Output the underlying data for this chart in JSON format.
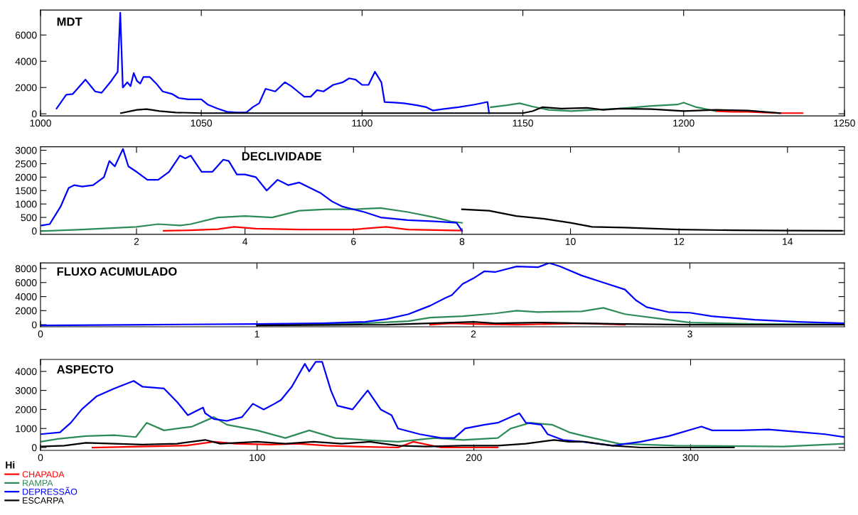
{
  "chart_data": [
    {
      "type": "line",
      "title": "MDT",
      "xlim": [
        1000,
        1250
      ],
      "xticks": [
        1000,
        1050,
        1100,
        1150,
        1200,
        1250
      ],
      "ylim": [
        -160,
        7900
      ],
      "yticks": [
        0,
        2000,
        4000,
        6000
      ],
      "grid": false,
      "legend": false,
      "series": [
        {
          "color": "#ff0000",
          "x": [
            1210,
            1215,
            1220,
            1225,
            1230,
            1237
          ],
          "values": [
            200,
            150,
            150,
            100,
            50,
            50
          ]
        },
        {
          "color": "#2e8b57",
          "x": [
            1140,
            1145,
            1149,
            1153,
            1158,
            1165,
            1172,
            1180,
            1190,
            1198,
            1200,
            1204,
            1210
          ],
          "values": [
            500,
            650,
            800,
            550,
            300,
            200,
            300,
            400,
            600,
            700,
            850,
            500,
            200
          ]
        },
        {
          "color": "#0000ff",
          "x": [
            1005,
            1008,
            1010,
            1014,
            1017,
            1019,
            1022,
            1024,
            1024.8,
            1025.6,
            1027,
            1028,
            1029,
            1030,
            1031,
            1032,
            1034,
            1036,
            1038,
            1041,
            1043,
            1046,
            1050,
            1052,
            1055,
            1058,
            1061,
            1064,
            1066,
            1068,
            1070,
            1073,
            1076,
            1078,
            1080,
            1082,
            1084,
            1086,
            1088,
            1091,
            1094,
            1096,
            1098,
            1100,
            1102,
            1104,
            1106,
            1107,
            1110,
            1113,
            1117,
            1120,
            1122,
            1125,
            1130,
            1135,
            1139,
            1139.5
          ],
          "values": [
            400,
            1450,
            1500,
            2600,
            1700,
            1600,
            2500,
            3200,
            7700,
            2000,
            2400,
            2100,
            3100,
            2500,
            2300,
            2800,
            2800,
            2300,
            1700,
            1500,
            1200,
            1100,
            1100,
            700,
            400,
            150,
            100,
            100,
            500,
            800,
            1900,
            1700,
            2400,
            2100,
            1700,
            1300,
            1300,
            1800,
            1700,
            2200,
            2400,
            2700,
            2600,
            2200,
            2200,
            3200,
            2400,
            900,
            850,
            800,
            650,
            500,
            250,
            350,
            500,
            700,
            900,
            50
          ]
        },
        {
          "color": "#000000",
          "x": [
            1025,
            1030,
            1033,
            1037,
            1042,
            1050,
            1100,
            1140,
            1150,
            1153,
            1156,
            1162,
            1170,
            1175,
            1180,
            1190,
            1200,
            1210,
            1220,
            1230
          ],
          "values": [
            50,
            300,
            350,
            200,
            100,
            50,
            50,
            50,
            50,
            200,
            500,
            400,
            450,
            300,
            400,
            350,
            200,
            300,
            250,
            50
          ]
        }
      ]
    },
    {
      "type": "line",
      "title": "DECLIVIDADE",
      "xlim": [
        0.23,
        15.05
      ],
      "xticks": [
        2,
        4,
        6,
        8,
        10,
        12,
        14
      ],
      "ylim": [
        -130,
        3130
      ],
      "yticks": [
        0,
        500,
        1000,
        1500,
        2000,
        2500,
        3000
      ],
      "grid": false,
      "legend": false,
      "series": [
        {
          "color": "#ff0000",
          "x": [
            2.5,
            3.0,
            3.5,
            3.8,
            4.2,
            5.0,
            6.0,
            6.6,
            7.0,
            8.0
          ],
          "values": [
            0,
            20,
            60,
            150,
            80,
            50,
            50,
            150,
            50,
            10
          ]
        },
        {
          "color": "#2e8b57",
          "x": [
            0.25,
            1.0,
            2.0,
            2.4,
            2.8,
            3.0,
            3.5,
            4.0,
            4.5,
            5.0,
            5.5,
            6.0,
            6.5,
            7.0,
            7.5,
            7.8,
            8.0
          ],
          "values": [
            -10,
            50,
            150,
            250,
            200,
            250,
            500,
            550,
            500,
            750,
            800,
            800,
            850,
            700,
            500,
            350,
            300
          ]
        },
        {
          "color": "#0000ff",
          "x": [
            0.25,
            0.4,
            0.6,
            0.75,
            0.85,
            1.0,
            1.2,
            1.4,
            1.5,
            1.6,
            1.75,
            1.85,
            2.0,
            2.2,
            2.4,
            2.6,
            2.8,
            2.9,
            3.0,
            3.2,
            3.4,
            3.6,
            3.7,
            3.85,
            4.0,
            4.2,
            4.4,
            4.6,
            4.8,
            5.0,
            5.2,
            5.4,
            5.6,
            5.8,
            6.0,
            6.2,
            6.5,
            7.0,
            7.5,
            7.9,
            8.0
          ],
          "values": [
            200,
            250,
            900,
            1600,
            1700,
            1650,
            1700,
            2000,
            2600,
            2400,
            3050,
            2400,
            2200,
            1900,
            1900,
            2200,
            2800,
            2700,
            2800,
            2200,
            2200,
            2650,
            2600,
            2100,
            2100,
            2000,
            1500,
            1900,
            1700,
            1800,
            1600,
            1400,
            1100,
            900,
            800,
            700,
            500,
            400,
            350,
            300,
            0
          ]
        },
        {
          "color": "#000000",
          "x": [
            8.0,
            8.5,
            9.0,
            9.5,
            10.0,
            10.4,
            11,
            12,
            13,
            14,
            15
          ],
          "values": [
            800,
            750,
            550,
            450,
            300,
            150,
            120,
            50,
            20,
            10,
            0
          ]
        }
      ]
    },
    {
      "type": "line",
      "title": "FLUXO ACUMULADO",
      "xlim": [
        0,
        3.714
      ],
      "xticks": [
        0,
        1,
        2,
        3
      ],
      "ylim": [
        -300,
        8800
      ],
      "yticks": [
        0,
        2000,
        4000,
        6000,
        8000
      ],
      "grid": false,
      "legend": false,
      "series": [
        {
          "color": "#ff0000",
          "x": [
            1.8,
            1.9,
            2.0,
            2.2,
            2.5,
            2.6,
            2.7
          ],
          "values": [
            0,
            200,
            100,
            0,
            200,
            100,
            0
          ]
        },
        {
          "color": "#2e8b57",
          "x": [
            1.0,
            1.5,
            1.7,
            1.8,
            1.95,
            2.1,
            2.2,
            2.3,
            2.5,
            2.6,
            2.7,
            2.9,
            3.0,
            3.3,
            3.714
          ],
          "values": [
            0,
            200,
            500,
            1000,
            1200,
            1600,
            2000,
            1800,
            1900,
            2400,
            1500,
            700,
            300,
            100,
            50
          ]
        },
        {
          "color": "#0000ff",
          "x": [
            0,
            0.5,
            1.0,
            1.3,
            1.5,
            1.6,
            1.7,
            1.8,
            1.87,
            1.9,
            1.95,
            2.0,
            2.05,
            2.1,
            2.2,
            2.3,
            2.35,
            2.4,
            2.5,
            2.6,
            2.7,
            2.75,
            2.8,
            2.9,
            3.0,
            3.1,
            3.3,
            3.5,
            3.714
          ],
          "values": [
            -100,
            0,
            100,
            200,
            400,
            800,
            1500,
            2700,
            3800,
            4200,
            5800,
            6600,
            7600,
            7500,
            8300,
            8200,
            8800,
            8300,
            7000,
            6000,
            5000,
            3500,
            2500,
            1800,
            1700,
            1200,
            700,
            400,
            200
          ]
        },
        {
          "color": "#000000",
          "x": [
            1.0,
            1.6,
            1.8,
            2.0,
            2.1,
            2.3,
            2.5,
            2.7,
            3.0,
            3.714
          ],
          "values": [
            -100,
            0,
            200,
            400,
            200,
            300,
            200,
            100,
            0,
            0
          ]
        }
      ]
    },
    {
      "type": "line",
      "title": "ASPECTO",
      "xlim": [
        0,
        371
      ],
      "xticks": [
        0,
        100,
        200,
        300
      ],
      "ylim": [
        -150,
        4630
      ],
      "yticks": [
        0,
        1000,
        2000,
        3000,
        4000
      ],
      "grid": false,
      "legend": "bottom left",
      "legend_title": "Hi",
      "series": [
        {
          "name": "CHAPADA",
          "color": "#ff0000",
          "x": [
            24,
            47,
            67,
            80,
            90,
            106,
            119,
            132,
            145,
            165,
            172,
            185,
            211
          ],
          "values": [
            0,
            50,
            100,
            300,
            200,
            150,
            200,
            100,
            50,
            0,
            300,
            0,
            0
          ]
        },
        {
          "name": "RAMPA",
          "color": "#2e8b57",
          "x": [
            0,
            8,
            21,
            34,
            44,
            49,
            57,
            70,
            80,
            86,
            100,
            113,
            124,
            136,
            149,
            165,
            182,
            195,
            211,
            217,
            226,
            236,
            244,
            251,
            267,
            293,
            343,
            371
          ],
          "values": [
            300,
            450,
            600,
            650,
            550,
            1300,
            900,
            1100,
            1600,
            1200,
            900,
            500,
            900,
            500,
            400,
            300,
            500,
            400,
            500,
            1000,
            1300,
            1200,
            800,
            600,
            200,
            100,
            50,
            200
          ]
        },
        {
          "name": "DEPRESSÃO",
          "color": "#0000ff",
          "x": [
            0,
            9,
            14,
            19,
            26,
            34,
            43,
            47,
            57,
            63,
            68,
            75,
            76,
            80,
            86,
            93,
            98,
            103,
            108,
            111,
            116,
            122,
            124,
            127,
            130,
            134,
            137,
            144,
            151,
            157,
            162,
            165,
            175,
            185,
            191,
            196,
            205,
            211,
            221,
            224,
            231,
            234,
            241,
            250,
            264,
            277,
            290,
            305,
            310,
            323,
            336,
            352,
            362,
            371
          ],
          "values": [
            700,
            800,
            1300,
            2000,
            2700,
            3100,
            3500,
            3200,
            3100,
            2400,
            1700,
            2100,
            1800,
            1500,
            1400,
            1600,
            2300,
            2000,
            2300,
            2500,
            3200,
            4400,
            4000,
            4500,
            4500,
            3000,
            2200,
            2000,
            3000,
            2000,
            1700,
            1000,
            700,
            500,
            500,
            1000,
            1200,
            1300,
            1800,
            1300,
            1200,
            700,
            400,
            300,
            100,
            300,
            600,
            1100,
            900,
            900,
            950,
            800,
            700,
            550
          ]
        },
        {
          "name": "ESCARPA",
          "color": "#000000",
          "x": [
            0,
            11,
            21,
            34,
            47,
            63,
            76,
            83,
            100,
            113,
            126,
            139,
            152,
            165,
            178,
            195,
            211,
            224,
            237,
            244,
            251,
            264,
            277,
            310,
            320
          ],
          "values": [
            50,
            100,
            250,
            200,
            150,
            200,
            400,
            200,
            300,
            200,
            300,
            200,
            300,
            100,
            50,
            100,
            100,
            200,
            400,
            300,
            300,
            100,
            0,
            0,
            0
          ]
        }
      ]
    }
  ]
}
